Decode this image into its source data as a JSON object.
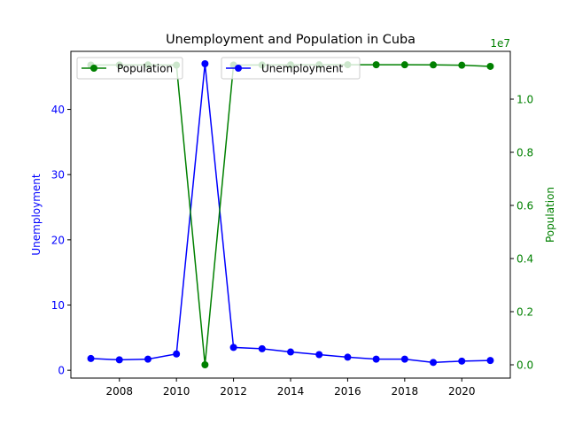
{
  "chart_data": {
    "type": "line",
    "title": "Unemployment and Population in Cuba",
    "xlabel": "",
    "x": [
      2007,
      2008,
      2009,
      2010,
      2011,
      2012,
      2013,
      2014,
      2015,
      2016,
      2017,
      2018,
      2019,
      2020,
      2021
    ],
    "x_ticks": [
      2008,
      2010,
      2012,
      2014,
      2016,
      2018,
      2020
    ],
    "xlim": [
      2006.3,
      2021.7
    ],
    "y_left": {
      "label": "Unemployment",
      "color": "#0000ff",
      "ticks": [
        0,
        10,
        20,
        30,
        40
      ],
      "lim": [
        -1.2,
        48.9
      ]
    },
    "y_right": {
      "label": "Population",
      "color": "#008000",
      "multiplier_text": "1e7",
      "ticks": [
        0.0,
        0.2,
        0.4,
        0.6,
        0.8,
        1.0
      ],
      "tick_labels": [
        "0.0",
        "0.2",
        "0.4",
        "0.6",
        "0.8",
        "1.0"
      ],
      "lim": [
        -0.05,
        1.18
      ]
    },
    "series": [
      {
        "name": "Unemployment",
        "axis": "left",
        "color": "#0000ff",
        "marker": "circle",
        "values": [
          1.8,
          1.6,
          1.7,
          2.5,
          47.0,
          3.5,
          3.3,
          2.8,
          2.4,
          2.0,
          1.7,
          1.7,
          1.2,
          1.4,
          1.5
        ]
      },
      {
        "name": "Population",
        "axis": "right",
        "color": "#008000",
        "marker": "circle",
        "values": [
          1.1285,
          1.1288,
          1.129,
          1.1282,
          0.0,
          1.1283,
          1.1286,
          1.1292,
          1.1295,
          1.1297,
          1.1296,
          1.1294,
          1.129,
          1.1278,
          1.1235
        ]
      }
    ],
    "legends": [
      {
        "series": "Population",
        "location": "upper-left"
      },
      {
        "series": "Unemployment",
        "location": "upper-center"
      }
    ],
    "grid": false
  }
}
